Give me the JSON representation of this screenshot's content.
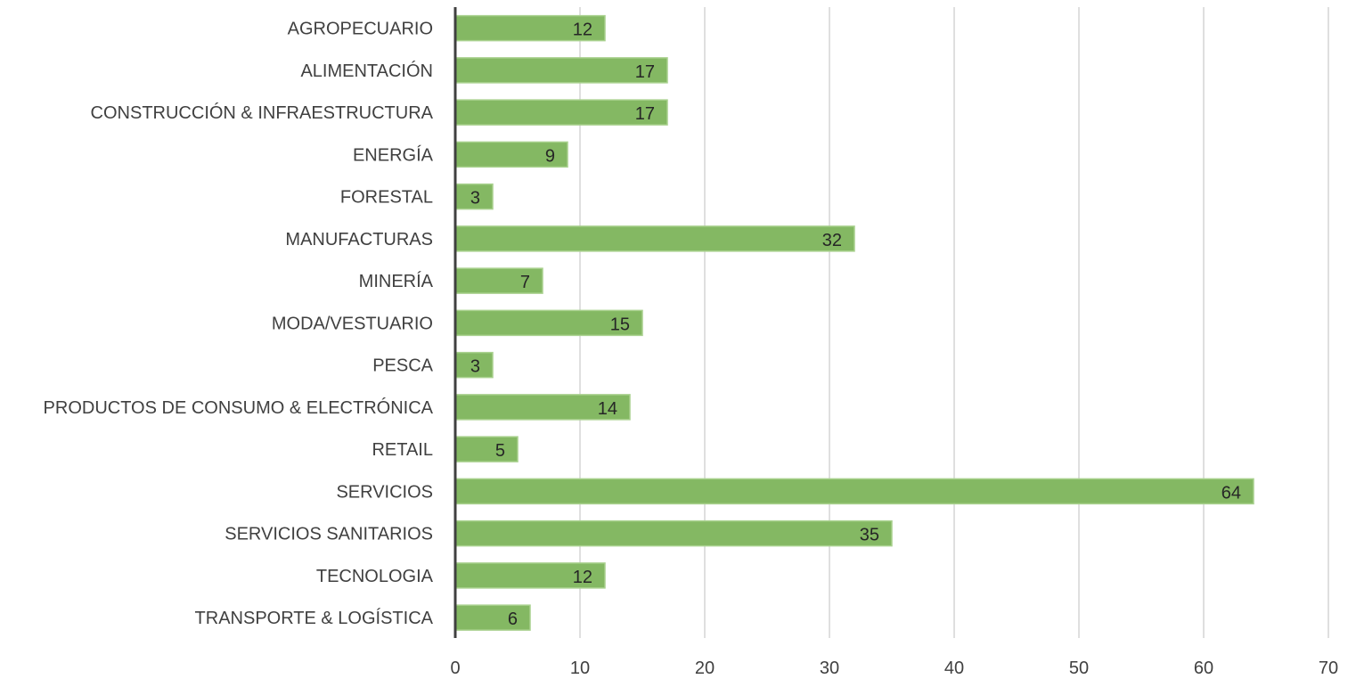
{
  "chart_data": {
    "type": "bar",
    "orientation": "horizontal",
    "categories": [
      "AGROPECUARIO",
      "ALIMENTACIÓN",
      "CONSTRUCCIÓN & INFRAESTRUCTURA",
      "ENERGÍA",
      "FORESTAL",
      "MANUFACTURAS",
      "MINERÍA",
      "MODA/VESTUARIO",
      "PESCA",
      "PRODUCTOS DE CONSUMO & ELECTRÓNICA",
      "RETAIL",
      "SERVICIOS",
      "SERVICIOS SANITARIOS",
      "TECNOLOGIA",
      "TRANSPORTE & LOGÍSTICA"
    ],
    "values": [
      12,
      17,
      17,
      9,
      3,
      32,
      7,
      15,
      3,
      14,
      5,
      64,
      35,
      12,
      6
    ],
    "x_ticks": [
      0,
      10,
      20,
      30,
      40,
      50,
      60,
      70
    ],
    "xlim": [
      0,
      70
    ],
    "title": "",
    "xlabel": "",
    "ylabel": "",
    "grid": "vertical",
    "legend": "none",
    "data_labels": "inside-end",
    "colors": {
      "bar_fill": "#84b863",
      "bar_stroke": "#a9d18e",
      "grid": "#bfbfbf",
      "axis": "#404040"
    }
  }
}
